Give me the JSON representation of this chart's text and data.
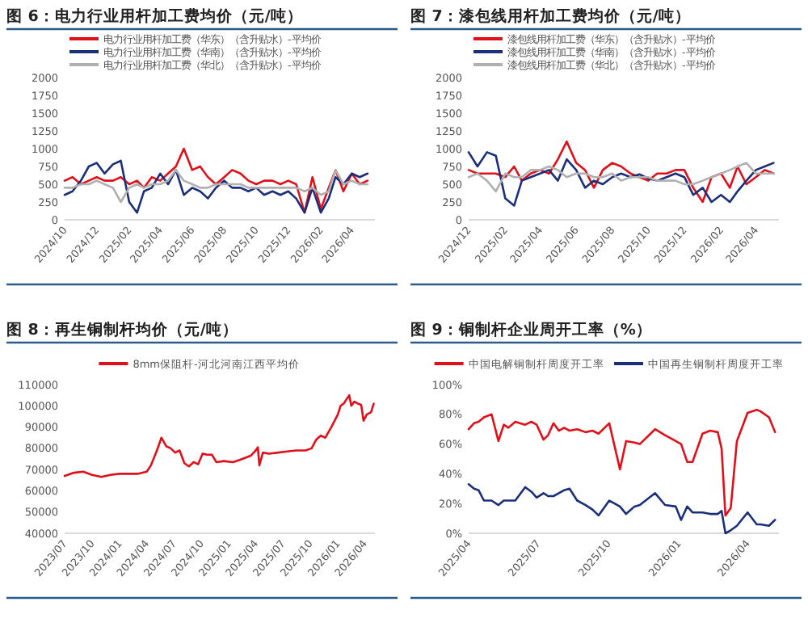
{
  "chart_data": [
    {
      "type": "line",
      "title": "图 6：电力行业用杆加工费均价（元/吨）",
      "legend": "top",
      "grid": false,
      "x": [
        "2024-10-01",
        "2024-10-16",
        "2024-11-01",
        "2024-11-16",
        "2024-12-01",
        "2024-12-16",
        "2025-01-01",
        "2025-01-16",
        "2025-02-01",
        "2025-02-16",
        "2025-03-01",
        "2025-03-16",
        "2025-04-01",
        "2025-04-16",
        "2025-05-01",
        "2025-05-16",
        "2025-06-01",
        "2025-06-16",
        "2025-07-01",
        "2025-07-16",
        "2025-08-01",
        "2025-08-16",
        "2025-09-01",
        "2025-09-16",
        "2025-10-01",
        "2025-10-16",
        "2025-11-01",
        "2025-11-16",
        "2025-12-01",
        "2025-12-16",
        "2026-01-01",
        "2026-01-16",
        "2026-02-01",
        "2026-02-16",
        "2026-03-01",
        "2026-03-16",
        "2026-04-01",
        "2026-04-16",
        "2026-05-01"
      ],
      "series": [
        {
          "name": "电力行业用杆加工费（华东）（含升贴水）-平均价",
          "color": "#e0101a",
          "values": [
            550,
            600,
            500,
            550,
            600,
            550,
            550,
            600,
            500,
            550,
            450,
            600,
            550,
            650,
            750,
            1000,
            700,
            750,
            600,
            500,
            600,
            700,
            650,
            550,
            500,
            550,
            550,
            500,
            550,
            500,
            100,
            600,
            150,
            450,
            700,
            400,
            650,
            500,
            550
          ]
        },
        {
          "name": "电力行业用杆加工费（华南）（含升贴水）-平均价",
          "color": "#1a2f7a",
          "values": [
            350,
            400,
            550,
            750,
            800,
            650,
            780,
            830,
            250,
            100,
            400,
            450,
            650,
            500,
            700,
            350,
            450,
            400,
            300,
            450,
            550,
            450,
            450,
            400,
            450,
            350,
            400,
            350,
            400,
            300,
            100,
            450,
            100,
            300,
            600,
            500,
            650,
            600,
            650
          ]
        },
        {
          "name": "电力行业用杆加工费（华北）（含升贴水）-平均价",
          "color": "#b0b0b0",
          "values": [
            450,
            450,
            500,
            500,
            550,
            500,
            450,
            250,
            450,
            500,
            450,
            500,
            500,
            550,
            700,
            550,
            500,
            450,
            450,
            500,
            500,
            500,
            500,
            450,
            450,
            450,
            450,
            450,
            450,
            450,
            400,
            450,
            350,
            400,
            700,
            500,
            550,
            500,
            500
          ]
        }
      ],
      "xlim": [
        "2024-10-01",
        "2026-05-15"
      ],
      "xticks": [
        {
          "value": "2024-10-01",
          "label": "2024/10"
        },
        {
          "value": "2024-12-01",
          "label": "2024/12"
        },
        {
          "value": "2025-02-01",
          "label": "2025/02"
        },
        {
          "value": "2025-04-01",
          "label": "2025/04"
        },
        {
          "value": "2025-06-01",
          "label": "2025/06"
        },
        {
          "value": "2025-08-01",
          "label": "2025/08"
        },
        {
          "value": "2025-10-01",
          "label": "2025/10"
        },
        {
          "value": "2025-12-01",
          "label": "2025/12"
        },
        {
          "value": "2026-02-01",
          "label": "2026/02"
        },
        {
          "value": "2026-04-01",
          "label": "2026/04"
        }
      ],
      "ylim": [
        0,
        2000
      ],
      "yticks": [
        0,
        250,
        500,
        750,
        1000,
        1250,
        1500,
        1750,
        2000
      ]
    },
    {
      "type": "line",
      "title": "图 7：漆包线用杆加工费均价（元/吨）",
      "legend": "top",
      "grid": false,
      "x": [
        "2024-12-01",
        "2024-12-16",
        "2025-01-01",
        "2025-01-16",
        "2025-02-01",
        "2025-02-16",
        "2025-03-01",
        "2025-03-16",
        "2025-04-01",
        "2025-04-16",
        "2025-05-01",
        "2025-05-16",
        "2025-06-01",
        "2025-06-16",
        "2025-07-01",
        "2025-07-16",
        "2025-08-01",
        "2025-08-16",
        "2025-09-01",
        "2025-09-16",
        "2025-10-01",
        "2025-10-16",
        "2025-11-01",
        "2025-11-16",
        "2025-12-01",
        "2025-12-16",
        "2026-01-01",
        "2026-01-16",
        "2026-02-01",
        "2026-02-16",
        "2026-03-01",
        "2026-03-16",
        "2026-04-01",
        "2026-04-16",
        "2026-05-01"
      ],
      "series": [
        {
          "name": "漆包线用杆加工费（华东）（含升贴水）-平均价",
          "color": "#e0101a",
          "values": [
            700,
            650,
            650,
            650,
            600,
            750,
            550,
            650,
            700,
            650,
            850,
            1100,
            800,
            700,
            450,
            700,
            800,
            750,
            650,
            600,
            550,
            650,
            650,
            700,
            700,
            450,
            250,
            600,
            650,
            450,
            750,
            500,
            600,
            700,
            650
          ]
        },
        {
          "name": "漆包线用杆加工费（华南）（含升贴水）-平均价",
          "color": "#1a2f7a",
          "values": [
            950,
            750,
            950,
            900,
            300,
            200,
            550,
            600,
            650,
            700,
            550,
            850,
            700,
            450,
            550,
            500,
            600,
            650,
            600,
            640,
            580,
            550,
            600,
            650,
            600,
            350,
            450,
            250,
            350,
            250,
            400,
            550,
            700,
            750,
            800
          ]
        },
        {
          "name": "漆包线用杆加工费（华北）（含升贴水）-平均价",
          "color": "#b0b0b0",
          "values": [
            600,
            650,
            550,
            400,
            650,
            600,
            600,
            700,
            700,
            750,
            700,
            600,
            650,
            650,
            600,
            600,
            650,
            550,
            600,
            600,
            600,
            550,
            550,
            550,
            500,
            500,
            550,
            600,
            650,
            700,
            750,
            800,
            650,
            650,
            650
          ]
        }
      ],
      "xlim": [
        "2024-12-01",
        "2026-05-10"
      ],
      "xticks": [
        {
          "value": "2024-12-01",
          "label": "2024/12"
        },
        {
          "value": "2025-02-01",
          "label": "2025/02"
        },
        {
          "value": "2025-04-01",
          "label": "2025/04"
        },
        {
          "value": "2025-06-01",
          "label": "2025/06"
        },
        {
          "value": "2025-08-01",
          "label": "2025/08"
        },
        {
          "value": "2025-10-01",
          "label": "2025/10"
        },
        {
          "value": "2025-12-01",
          "label": "2025/12"
        },
        {
          "value": "2026-02-01",
          "label": "2026/02"
        },
        {
          "value": "2026-04-01",
          "label": "2026/04"
        }
      ],
      "ylim": [
        0,
        2000
      ],
      "yticks": [
        0,
        250,
        500,
        750,
        1000,
        1250,
        1500,
        1750,
        2000
      ]
    },
    {
      "type": "line",
      "title": "图 8：再生铜制杆均价（元/吨）",
      "legend": "top",
      "grid": false,
      "x": [
        "2023-07-01",
        "2023-08-01",
        "2023-09-01",
        "2023-10-01",
        "2023-11-01",
        "2023-12-01",
        "2024-01-01",
        "2024-02-01",
        "2024-03-01",
        "2024-04-01",
        "2024-04-15",
        "2024-05-05",
        "2024-05-20",
        "2024-06-05",
        "2024-06-20",
        "2024-07-05",
        "2024-07-20",
        "2024-08-05",
        "2024-08-20",
        "2024-09-05",
        "2024-09-20",
        "2024-10-05",
        "2024-10-20",
        "2024-11-05",
        "2024-11-20",
        "2024-12-15",
        "2025-01-15",
        "2025-02-15",
        "2025-03-15",
        "2025-04-01",
        "2025-04-08",
        "2025-04-13",
        "2025-04-25",
        "2025-05-15",
        "2025-06-15",
        "2025-07-15",
        "2025-08-15",
        "2025-09-15",
        "2025-10-05",
        "2025-10-20",
        "2025-11-05",
        "2025-11-20",
        "2025-12-10",
        "2026-01-01",
        "2026-01-10",
        "2026-01-20",
        "2026-02-08",
        "2026-02-15",
        "2026-02-25",
        "2026-03-10",
        "2026-03-20",
        "2026-03-28",
        "2026-04-08",
        "2026-04-22",
        "2026-05-01"
      ],
      "series": [
        {
          "name": "8mm保阻杆-河北河南江西平均价",
          "color": "#e0101a",
          "values": [
            67000,
            68500,
            69000,
            67500,
            66500,
            67500,
            68000,
            68000,
            68000,
            69000,
            72000,
            79000,
            85000,
            81000,
            80000,
            78000,
            79000,
            73000,
            71500,
            73500,
            72500,
            77500,
            77000,
            77000,
            73500,
            74000,
            73500,
            75000,
            76500,
            79000,
            80500,
            72000,
            78000,
            77500,
            78000,
            78500,
            79000,
            79000,
            80000,
            84000,
            86000,
            85000,
            90000,
            96000,
            100000,
            101000,
            105000,
            100000,
            102000,
            101000,
            100500,
            93000,
            96000,
            97000,
            101000
          ]
        }
      ],
      "xlim": [
        "2023-07-01",
        "2026-05-05"
      ],
      "xticks": [
        {
          "value": "2023-07-01",
          "label": "2023/07"
        },
        {
          "value": "2023-10-01",
          "label": "2023/10"
        },
        {
          "value": "2024-01-01",
          "label": "2024/01"
        },
        {
          "value": "2024-04-01",
          "label": "2024/04"
        },
        {
          "value": "2024-07-01",
          "label": "2024/07"
        },
        {
          "value": "2024-10-01",
          "label": "2024/10"
        },
        {
          "value": "2025-01-01",
          "label": "2025/01"
        },
        {
          "value": "2025-04-01",
          "label": "2025/04"
        },
        {
          "value": "2025-07-01",
          "label": "2025/07"
        },
        {
          "value": "2025-10-01",
          "label": "2025/10"
        },
        {
          "value": "2026-01-01",
          "label": "2026/01"
        },
        {
          "value": "2026-04-01",
          "label": "2026/04"
        }
      ],
      "ylim": [
        40000,
        110000
      ],
      "yticks": [
        40000,
        50000,
        60000,
        70000,
        80000,
        90000,
        100000,
        110000
      ]
    },
    {
      "type": "line",
      "title": "图 9：铜制杆企业周开工率（%）",
      "legend": "top",
      "grid": false,
      "x": [
        "2025-04-01",
        "2025-04-08",
        "2025-04-14",
        "2025-04-21",
        "2025-05-01",
        "2025-05-10",
        "2025-05-17",
        "2025-05-23",
        "2025-06-01",
        "2025-06-14",
        "2025-06-22",
        "2025-06-29",
        "2025-07-08",
        "2025-07-14",
        "2025-07-21",
        "2025-07-28",
        "2025-08-04",
        "2025-08-11",
        "2025-08-21",
        "2025-09-01",
        "2025-09-10",
        "2025-09-18",
        "2025-10-02",
        "2025-10-16",
        "2025-10-24",
        "2025-11-04",
        "2025-11-11",
        "2025-12-01",
        "2025-12-14",
        "2025-12-28",
        "2026-01-04",
        "2026-01-12",
        "2026-01-19",
        "2026-02-01",
        "2026-02-11",
        "2026-02-21",
        "2026-02-26",
        "2026-03-03",
        "2026-03-10",
        "2026-03-18",
        "2026-04-01",
        "2026-04-13",
        "2026-04-18",
        "2026-04-29",
        "2026-05-07"
      ],
      "series": [
        {
          "name": "中国电解铜制杆周度开工率",
          "color": "#e0101a",
          "values": [
            70,
            74,
            75,
            78,
            80,
            62,
            73,
            71,
            75,
            73,
            75,
            73,
            63,
            66,
            74,
            69,
            71,
            69,
            70,
            68,
            69,
            67,
            74,
            43,
            62,
            61,
            60,
            70,
            66,
            62,
            60,
            48,
            48,
            67,
            69,
            68,
            57,
            12,
            17,
            62,
            81,
            83,
            82,
            78,
            68
          ]
        },
        {
          "name": "中国再生铜制杆周度开工率",
          "color": "#1a2f7a",
          "values": [
            33,
            30,
            29,
            22,
            22,
            19,
            22,
            22,
            22,
            31,
            28,
            24,
            27,
            25,
            25,
            27,
            29,
            30,
            22,
            19,
            16,
            12,
            22,
            18,
            13,
            18,
            19,
            27,
            19,
            18,
            9,
            18,
            14,
            14,
            13,
            13,
            15,
            0,
            2,
            5,
            14,
            6,
            6,
            5,
            9
          ]
        }
      ],
      "xlim": [
        "2025-04-01",
        "2026-05-12"
      ],
      "xticks": [
        {
          "value": "2025-04-01",
          "label": "2025/04"
        },
        {
          "value": "2025-07-01",
          "label": "2025/07"
        },
        {
          "value": "2025-10-01",
          "label": "2025/10"
        },
        {
          "value": "2026-01-01",
          "label": "2026/01"
        },
        {
          "value": "2026-04-01",
          "label": "2026/04"
        }
      ],
      "ylim": [
        0,
        100
      ],
      "yticks": [
        {
          "value": 0,
          "label": "0%"
        },
        {
          "value": 20,
          "label": "20%"
        },
        {
          "value": 40,
          "label": "40%"
        },
        {
          "value": 60,
          "label": "60%"
        },
        {
          "value": 80,
          "label": "80%"
        },
        {
          "value": 100,
          "label": "100%"
        }
      ]
    }
  ]
}
